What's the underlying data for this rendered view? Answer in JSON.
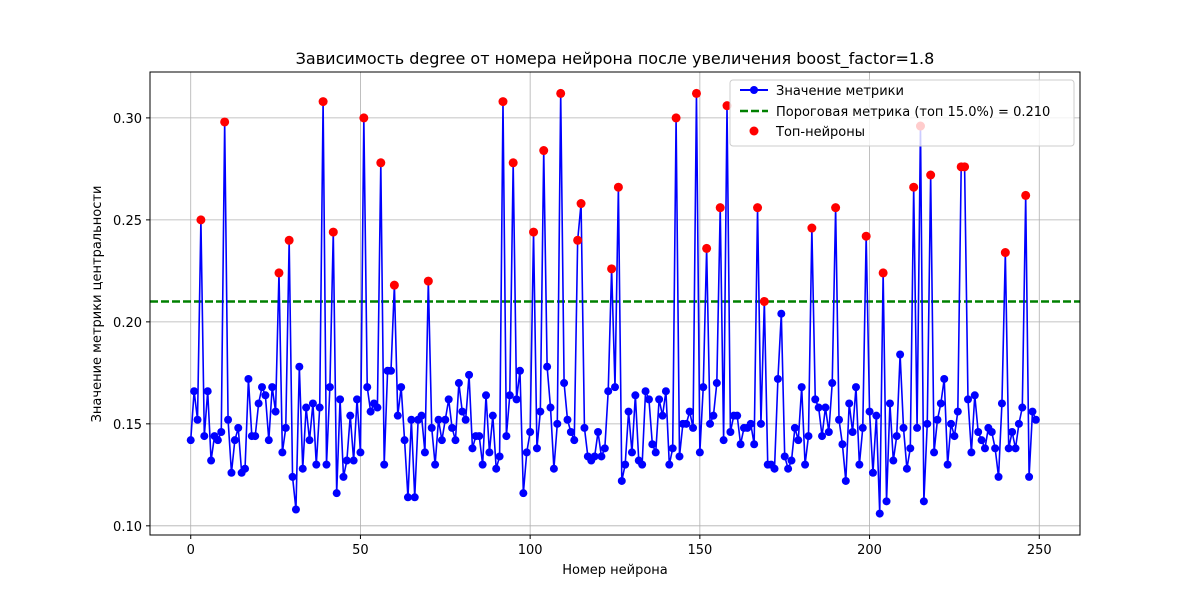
{
  "chart_data": {
    "type": "line",
    "title": "Зависимость degree от номера нейрона после увеличения boost_factor=1.8",
    "xlabel": "Номер нейрона",
    "ylabel": "Значение метрики центральности",
    "xlim": [
      -12,
      262
    ],
    "ylim": [
      0.0955,
      0.3225
    ],
    "xticks": [
      0,
      50,
      100,
      150,
      200,
      250
    ],
    "yticks": [
      0.1,
      0.15,
      0.2,
      0.25,
      0.3
    ],
    "ytick_labels": [
      "0.10",
      "0.15",
      "0.20",
      "0.25",
      "0.30"
    ],
    "grid": true,
    "legend_position": "top-right",
    "colors": {
      "line": "#0000ff",
      "threshold": "#008000",
      "top": "#ff0000",
      "grid": "#b0b0b0"
    },
    "series": [
      {
        "name": "Значение метрики",
        "kind": "line-markers",
        "x_start": 0,
        "x_step": 1,
        "values": [
          0.142,
          0.166,
          0.152,
          0.25,
          0.144,
          0.166,
          0.132,
          0.144,
          0.142,
          0.146,
          0.298,
          0.152,
          0.126,
          0.142,
          0.148,
          0.126,
          0.128,
          0.172,
          0.144,
          0.144,
          0.16,
          0.168,
          0.164,
          0.142,
          0.168,
          0.156,
          0.224,
          0.136,
          0.148,
          0.24,
          0.124,
          0.108,
          0.178,
          0.128,
          0.158,
          0.142,
          0.16,
          0.13,
          0.158,
          0.308,
          0.13,
          0.168,
          0.244,
          0.116,
          0.162,
          0.124,
          0.132,
          0.154,
          0.132,
          0.162,
          0.136,
          0.3,
          0.168,
          0.156,
          0.16,
          0.158,
          0.278,
          0.13,
          0.176,
          0.176,
          0.218,
          0.154,
          0.168,
          0.142,
          0.114,
          0.152,
          0.114,
          0.152,
          0.154,
          0.136,
          0.22,
          0.148,
          0.13,
          0.152,
          0.142,
          0.152,
          0.162,
          0.148,
          0.142,
          0.17,
          0.156,
          0.152,
          0.174,
          0.138,
          0.144,
          0.144,
          0.13,
          0.164,
          0.136,
          0.154,
          0.128,
          0.134,
          0.308,
          0.144,
          0.164,
          0.278,
          0.162,
          0.176,
          0.116,
          0.136,
          0.146,
          0.244,
          0.138,
          0.156,
          0.284,
          0.178,
          0.158,
          0.128,
          0.15,
          0.312,
          0.17,
          0.152,
          0.146,
          0.142,
          0.24,
          0.258,
          0.148,
          0.134,
          0.132,
          0.134,
          0.146,
          0.134,
          0.138,
          0.166,
          0.226,
          0.168,
          0.266,
          0.122,
          0.13,
          0.156,
          0.136,
          0.164,
          0.132,
          0.13,
          0.166,
          0.162,
          0.14,
          0.136,
          0.162,
          0.154,
          0.166,
          0.13,
          0.138,
          0.3,
          0.134,
          0.15,
          0.15,
          0.156,
          0.148,
          0.312,
          0.136,
          0.168,
          0.236,
          0.15,
          0.154,
          0.17,
          0.256,
          0.142,
          0.306,
          0.146,
          0.154,
          0.154,
          0.14,
          0.148,
          0.148,
          0.15,
          0.14,
          0.256,
          0.15,
          0.21,
          0.13,
          0.13,
          0.128,
          0.172,
          0.204,
          0.134,
          0.128,
          0.132,
          0.148,
          0.142,
          0.168,
          0.13,
          0.144,
          0.246,
          0.162,
          0.158,
          0.144,
          0.158,
          0.146,
          0.17,
          0.256,
          0.152,
          0.14,
          0.122,
          0.16,
          0.146,
          0.168,
          0.13,
          0.148,
          0.242,
          0.156,
          0.126,
          0.154,
          0.106,
          0.224,
          0.112,
          0.16,
          0.132,
          0.144,
          0.184,
          0.148,
          0.128,
          0.138,
          0.266,
          0.148,
          0.296,
          0.112,
          0.15,
          0.272,
          0.136,
          0.152,
          0.16,
          0.172,
          0.13,
          0.15,
          0.144,
          0.156,
          0.276,
          0.276,
          0.162,
          0.136,
          0.164,
          0.146,
          0.142,
          0.138,
          0.148,
          0.146,
          0.138,
          0.124,
          0.16,
          0.234,
          0.138,
          0.146,
          0.138,
          0.15,
          0.158,
          0.262,
          0.124,
          0.156,
          0.152
        ]
      },
      {
        "name": "Пороговая метрика (топ 15.0%) = 0.210",
        "kind": "hline",
        "y": 0.21
      },
      {
        "name": "Топ-нейроны",
        "kind": "scatter",
        "x": [
          3,
          10,
          26,
          29,
          39,
          42,
          51,
          56,
          60,
          70,
          92,
          95,
          101,
          104,
          109,
          114,
          115,
          124,
          126,
          143,
          149,
          152,
          156,
          158,
          167,
          169,
          183,
          190,
          199,
          204,
          213,
          215,
          218,
          227,
          228,
          240,
          246
        ],
        "y": [
          0.25,
          0.298,
          0.224,
          0.24,
          0.308,
          0.244,
          0.3,
          0.278,
          0.218,
          0.22,
          0.308,
          0.278,
          0.244,
          0.284,
          0.312,
          0.24,
          0.258,
          0.226,
          0.266,
          0.3,
          0.312,
          0.236,
          0.256,
          0.306,
          0.256,
          0.21,
          0.246,
          0.256,
          0.242,
          0.224,
          0.266,
          0.296,
          0.272,
          0.276,
          0.276,
          0.234,
          0.262
        ]
      }
    ]
  }
}
